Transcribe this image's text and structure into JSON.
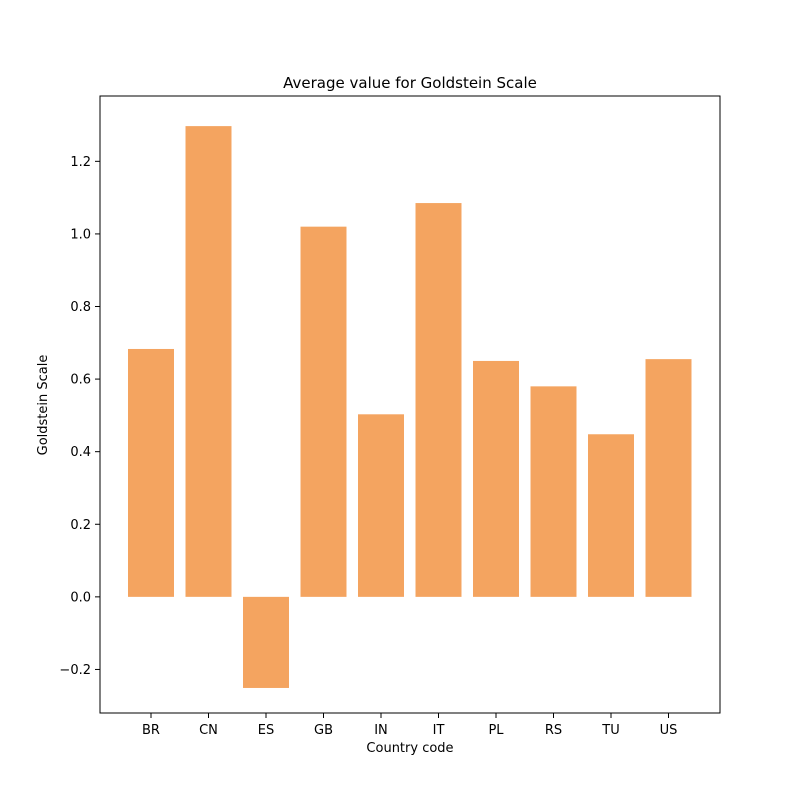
{
  "chart_data": {
    "type": "bar",
    "title": "Average value for Goldstein Scale",
    "xlabel": "Country code",
    "ylabel": "Goldstein Scale",
    "categories": [
      "BR",
      "CN",
      "ES",
      "GB",
      "IN",
      "IT",
      "PL",
      "RS",
      "TU",
      "US"
    ],
    "values": [
      0.683,
      1.297,
      -0.251,
      1.02,
      0.503,
      1.085,
      0.65,
      0.58,
      0.448,
      0.655
    ],
    "ylim": [
      -0.32,
      1.38
    ],
    "yticks": [
      -0.2,
      0.0,
      0.2,
      0.4,
      0.6,
      0.8,
      1.0,
      1.2
    ],
    "ytick_labels": [
      "−0.2",
      "0.0",
      "0.2",
      "0.4",
      "0.6",
      "0.8",
      "1.0",
      "1.2"
    ],
    "grid": false,
    "bar_color": "#f4a460"
  }
}
